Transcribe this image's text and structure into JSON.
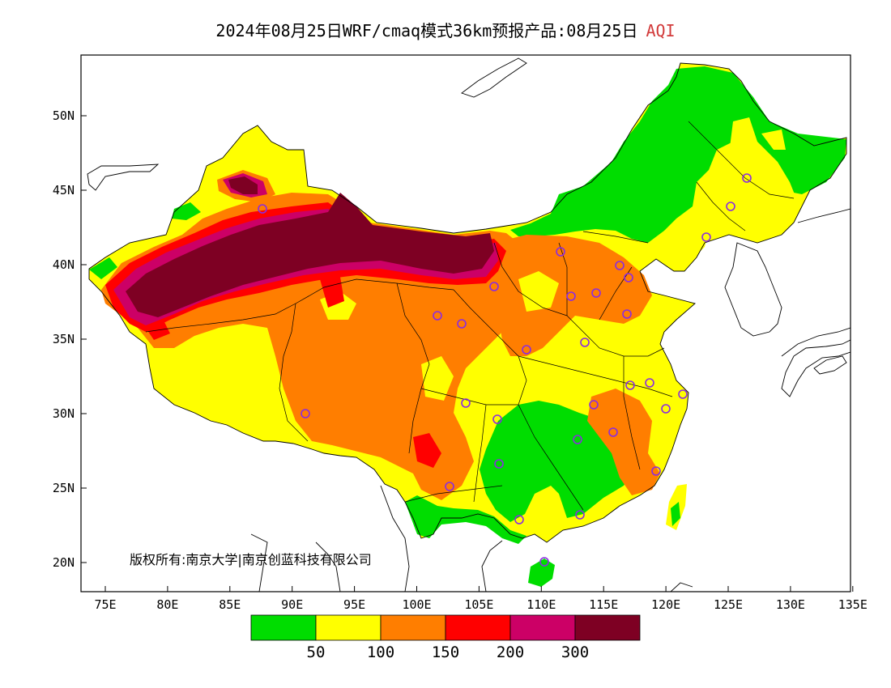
{
  "title": "2024年08月25日WRF/cmaq模式36km预报产品:08月25日",
  "variable": "AQI",
  "copyright": "版权所有:南京大学|南京创蓝科技有限公司",
  "axes": {
    "lon_ticks": [
      "75E",
      "80E",
      "85E",
      "90E",
      "95E",
      "100E",
      "105E",
      "110E",
      "115E",
      "120E",
      "125E",
      "130E",
      "135E"
    ],
    "lat_ticks": [
      "50N",
      "45N",
      "40N",
      "35N",
      "30N",
      "25N",
      "20N"
    ]
  },
  "colorbar": {
    "colors": [
      "#00dd00",
      "#ffff00",
      "#ff7e00",
      "#ff0000",
      "#cc0066",
      "#7e0023"
    ],
    "labels": [
      "50",
      "100",
      "150",
      "200",
      "300"
    ]
  },
  "colors": {
    "good": "#00dd00",
    "moderate": "#ffff00",
    "usg": "#ff7e00",
    "unhealthy": "#ff0000",
    "very_unhealthy": "#cc0066",
    "hazardous": "#7e0023",
    "station": "#8a2be2"
  }
}
